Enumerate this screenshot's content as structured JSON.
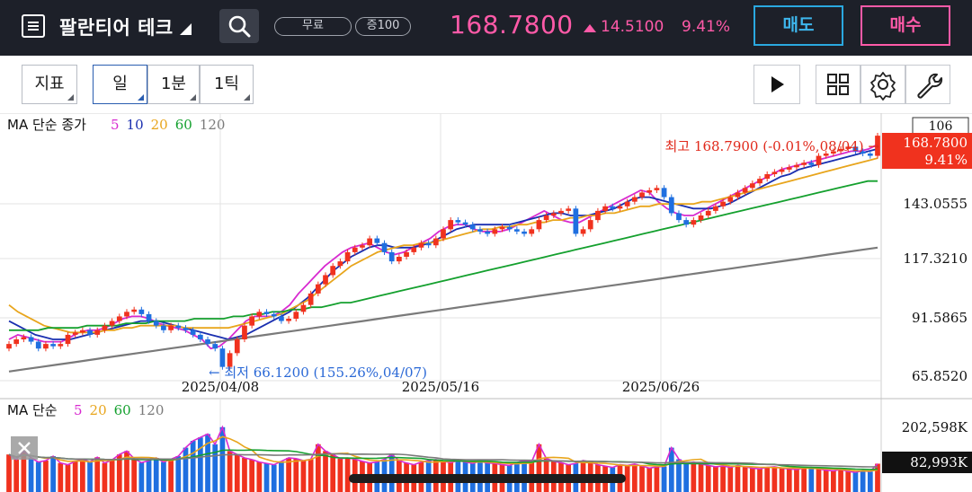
{
  "header": {
    "stock_name": "팔란티어 테크",
    "pill_free": "무료",
    "pill_margin": "증100",
    "price": "168.7800",
    "change": "14.5100",
    "change_pct": "9.41%",
    "sell_label": "매도",
    "buy_label": "매수"
  },
  "toolbar": {
    "indicator_label": "지표",
    "day_label": "일",
    "min_label": "1분",
    "tick_label": "1틱"
  },
  "price_chart": {
    "legend_prefix": "MA 단순 종가",
    "ma_periods": [
      "5",
      "10",
      "20",
      "60",
      "120"
    ],
    "ma_colors": [
      "#d82ad0",
      "#1a2fb0",
      "#e8a51c",
      "#14a02e",
      "#7a7a7a"
    ],
    "current_box_top": "106",
    "current_price": "168.7800",
    "current_pct": "9.41%",
    "high_annotation": "최고 168.7900 (-0.01%,08/04) →",
    "low_annotation": "← 최저 66.1200 (155.26%,04/07)",
    "y_labels": [
      "143.0555",
      "117.3210",
      "91.5865",
      "65.8520"
    ],
    "x_labels": [
      "2025/04/08",
      "2025/05/16",
      "2025/06/26"
    ]
  },
  "volume_chart": {
    "legend_prefix": "MA 단순",
    "ma_periods": [
      "5",
      "20",
      "60",
      "120"
    ],
    "ma_colors": [
      "#d82ad0",
      "#e8a51c",
      "#14a02e",
      "#7a7a7a"
    ],
    "y_max_label": "202,598K",
    "current_volume": "82,993K"
  },
  "colors": {
    "up": "#f0321e",
    "down": "#1f6fe0",
    "header_bg": "#1d2029",
    "accent_pink": "#ff5aa8",
    "accent_blue": "#2aa8e0"
  },
  "chart_data": {
    "type": "candlestick",
    "y_axis_ticks": [
      65.852,
      91.5865,
      117.321,
      143.0555
    ],
    "x_axis_ticks": [
      "2025/04/08",
      "2025/05/16",
      "2025/06/26"
    ],
    "current": 168.78,
    "high": {
      "value": 168.79,
      "date": "08/04"
    },
    "low": {
      "value": 66.12,
      "date": "04/07"
    },
    "closes": [
      78,
      80,
      81,
      79,
      76,
      78,
      77,
      78,
      82,
      83,
      84,
      82,
      84,
      86,
      88,
      90,
      92,
      93,
      91,
      88,
      86,
      84,
      86,
      85,
      84,
      82,
      80,
      78,
      76,
      68,
      74,
      80,
      86,
      90,
      92,
      91,
      90,
      88,
      89,
      92,
      95,
      100,
      104,
      108,
      112,
      114,
      118,
      120,
      121,
      124,
      122,
      118,
      114,
      116,
      118,
      120,
      122,
      121,
      124,
      128,
      132,
      131,
      130,
      128,
      127,
      126,
      128,
      129,
      128,
      127,
      126,
      128,
      132,
      134,
      135,
      136,
      137,
      126,
      128,
      132,
      136,
      138,
      137,
      138,
      140,
      142,
      144,
      145,
      146,
      142,
      135,
      132,
      130,
      132,
      134,
      136,
      138,
      140,
      142,
      144,
      146,
      148,
      150,
      152,
      153,
      154,
      155,
      156,
      157,
      156,
      160,
      161,
      162,
      163,
      164,
      162,
      161,
      160,
      168.78
    ],
    "opens": [
      76,
      78,
      80,
      81,
      79,
      76,
      78,
      77,
      78,
      82,
      83,
      84,
      82,
      84,
      86,
      88,
      90,
      92,
      93,
      91,
      88,
      86,
      84,
      86,
      85,
      84,
      82,
      80,
      78,
      76,
      68,
      74,
      80,
      86,
      90,
      92,
      91,
      90,
      88,
      89,
      92,
      95,
      100,
      104,
      108,
      112,
      114,
      118,
      120,
      121,
      124,
      122,
      118,
      114,
      116,
      118,
      120,
      122,
      121,
      124,
      128,
      132,
      131,
      130,
      128,
      127,
      126,
      128,
      129,
      128,
      127,
      126,
      128,
      132,
      134,
      135,
      136,
      137,
      126,
      128,
      132,
      136,
      138,
      137,
      138,
      140,
      142,
      144,
      145,
      146,
      142,
      135,
      132,
      130,
      132,
      134,
      136,
      138,
      140,
      142,
      144,
      146,
      148,
      150,
      152,
      153,
      154,
      155,
      156,
      157,
      156,
      160,
      161,
      162,
      163,
      164,
      162,
      161,
      160
    ],
    "volumes": [
      110,
      95,
      120,
      100,
      88,
      92,
      105,
      85,
      80,
      90,
      96,
      88,
      102,
      85,
      94,
      110,
      120,
      98,
      86,
      92,
      100,
      88,
      96,
      105,
      130,
      150,
      160,
      170,
      140,
      190,
      120,
      110,
      100,
      95,
      88,
      84,
      80,
      90,
      100,
      98,
      92,
      96,
      140,
      120,
      110,
      98,
      100,
      96,
      90,
      85,
      88,
      96,
      110,
      92,
      85,
      80,
      88,
      92,
      95,
      90,
      86,
      92,
      88,
      84,
      90,
      85,
      84,
      80,
      78,
      86,
      92,
      88,
      140,
      98,
      90,
      86,
      80,
      84,
      92,
      88,
      80,
      76,
      72,
      80,
      78,
      82,
      76,
      70,
      74,
      75,
      130,
      96,
      84,
      88,
      82,
      78,
      74,
      76,
      72,
      78,
      74,
      70,
      68,
      72,
      74,
      70,
      68,
      66,
      70,
      72,
      68,
      64,
      62,
      66,
      60,
      58,
      62,
      60,
      82.993
    ],
    "ma_series": {
      "5": [
        80,
        82,
        81,
        80,
        79,
        79,
        79,
        81,
        83,
        84,
        84,
        85,
        87,
        89,
        90,
        90,
        89,
        87,
        86,
        85,
        84,
        82,
        80,
        76,
        77,
        80,
        84,
        88,
        90,
        90,
        90,
        92,
        95,
        100,
        104,
        108,
        112,
        115,
        118,
        120,
        121,
        122,
        120,
        118,
        117,
        118,
        120,
        122,
        124,
        127,
        129,
        130,
        130,
        128,
        127,
        127,
        127,
        128,
        130,
        132,
        134,
        136,
        134,
        132,
        131,
        131,
        133,
        135,
        137,
        139,
        141,
        143,
        145,
        144,
        140,
        137,
        135,
        134,
        134,
        136,
        138,
        140,
        142,
        144,
        146,
        148,
        150,
        152,
        154,
        155,
        156,
        157,
        158,
        159,
        160,
        161,
        162,
        162,
        163,
        165
      ],
      "10": [
        88,
        86,
        84,
        82,
        81,
        80,
        80,
        80,
        81,
        82,
        83,
        84,
        85,
        86,
        87,
        88,
        88,
        88,
        87,
        86,
        85,
        84,
        83,
        82,
        81,
        80,
        81,
        82,
        84,
        86,
        88,
        90,
        92,
        95,
        98,
        102,
        106,
        110,
        113,
        116,
        118,
        120,
        121,
        121,
        120,
        120,
        120,
        121,
        122,
        124,
        126,
        128,
        129,
        130,
        130,
        130,
        130,
        130,
        131,
        132,
        133,
        134,
        135,
        135,
        134,
        134,
        134,
        135,
        136,
        137,
        139,
        141,
        142,
        142,
        141,
        140,
        139,
        138,
        137,
        137,
        137,
        138,
        139,
        141,
        143,
        145,
        147,
        149,
        151,
        152,
        154,
        155,
        156,
        157,
        158,
        159,
        160,
        161,
        162,
        163
      ],
      "20": [
        95,
        92,
        90,
        88,
        86,
        85,
        84,
        83,
        83,
        83,
        83,
        84,
        84,
        85,
        85,
        86,
        86,
        86,
        86,
        86,
        85,
        85,
        85,
        85,
        85,
        85,
        86,
        87,
        88,
        89,
        90,
        91,
        93,
        95,
        97,
        100,
        103,
        106,
        109,
        112,
        114,
        116,
        118,
        119,
        120,
        121,
        121,
        122,
        122,
        123,
        124,
        125,
        126,
        127,
        128,
        128,
        129,
        129,
        130,
        130,
        131,
        131,
        132,
        132,
        133,
        133,
        134,
        134,
        135,
        135,
        136,
        137,
        138,
        138,
        139,
        139,
        139,
        139,
        139,
        140,
        140,
        141,
        142,
        143,
        144,
        145,
        146,
        147,
        148,
        149,
        150,
        151,
        152,
        153,
        154,
        155,
        156,
        157,
        158,
        159
      ],
      "60": [
        84,
        84,
        84,
        84,
        85,
        85,
        85,
        85,
        86,
        86,
        86,
        86,
        87,
        87,
        87,
        88,
        88,
        88,
        88,
        89,
        89,
        89,
        89,
        90,
        90,
        91,
        91,
        92,
        92,
        93,
        93,
        94,
        94,
        95,
        96,
        96,
        97,
        98,
        99,
        100,
        101,
        102,
        103,
        104,
        105,
        106,
        107,
        108,
        109,
        110,
        111,
        112,
        113,
        114,
        115,
        116,
        117,
        118,
        119,
        120,
        121,
        122,
        123,
        124,
        125,
        126,
        127,
        128,
        129,
        130,
        131,
        132,
        133,
        134,
        135,
        136,
        137,
        138,
        139,
        140,
        141,
        142,
        143,
        144,
        145,
        146,
        147,
        148,
        149,
        149
      ],
      "120": [
        66,
        67,
        68,
        69,
        70,
        71,
        72,
        73,
        74,
        75,
        76,
        77,
        78,
        79,
        80,
        81,
        82,
        83,
        84,
        85,
        86,
        87,
        88,
        89,
        90,
        91,
        92,
        93,
        94,
        95,
        96,
        97,
        98,
        99,
        100,
        101,
        102,
        103,
        104,
        105,
        106,
        107,
        108,
        109,
        110,
        111,
        112,
        113,
        114,
        115,
        116,
        117,
        118,
        119,
        120
      ]
    }
  }
}
